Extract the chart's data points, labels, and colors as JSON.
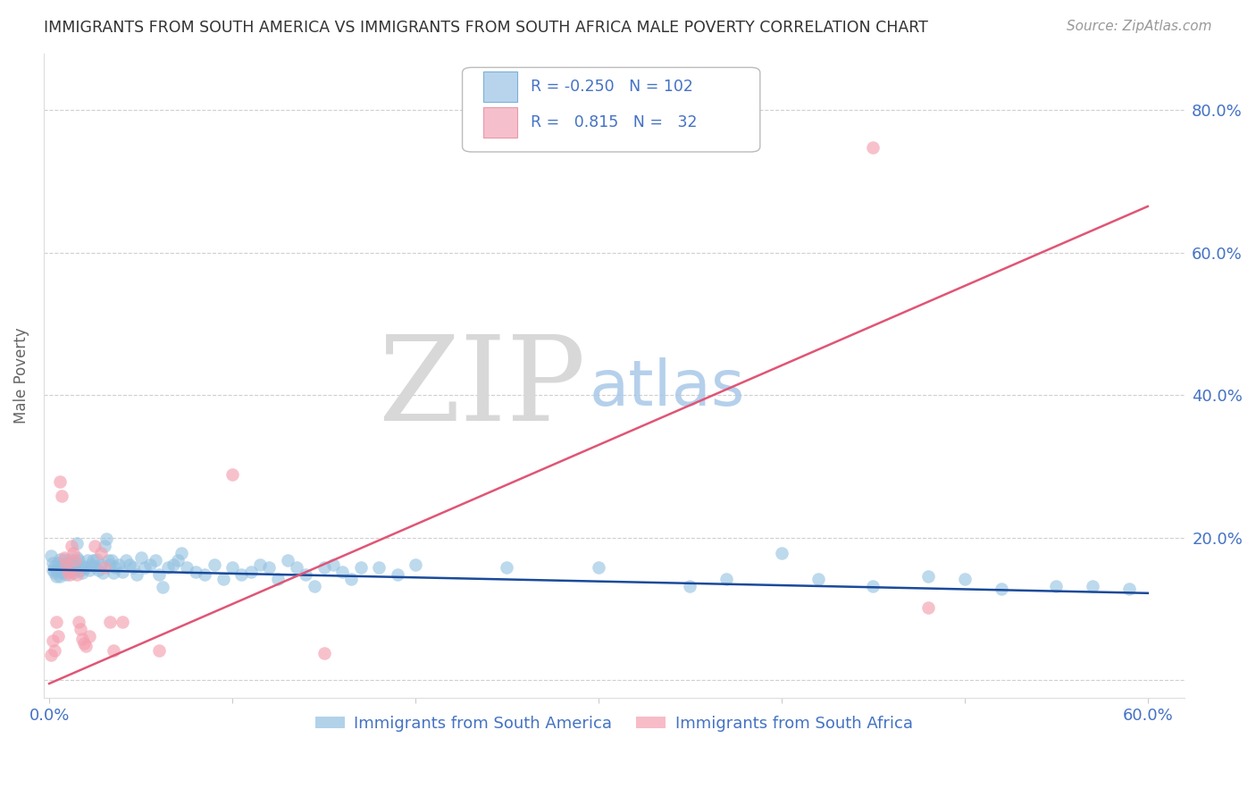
{
  "title": "IMMIGRANTS FROM SOUTH AMERICA VS IMMIGRANTS FROM SOUTH AFRICA MALE POVERTY CORRELATION CHART",
  "source": "Source: ZipAtlas.com",
  "ylabel": "Male Poverty",
  "series1_label": "Immigrants from South America",
  "series2_label": "Immigrants from South Africa",
  "series1_color": "#92c0e0",
  "series2_color": "#f4a0b0",
  "series1_R": -0.25,
  "series1_N": 102,
  "series2_R": 0.815,
  "series2_N": 32,
  "xlim": [
    -0.003,
    0.62
  ],
  "ylim": [
    -0.025,
    0.88
  ],
  "grid_color": "#d0d0d0",
  "background_color": "#ffffff",
  "title_color": "#333333",
  "axis_label_color": "#4472c4",
  "trend1_color": "#1a4a9a",
  "trend2_color": "#e05575",
  "trend1_x": [
    0.0,
    0.6
  ],
  "trend1_y": [
    0.155,
    0.122
  ],
  "trend2_x": [
    0.0,
    0.6
  ],
  "trend2_y": [
    -0.005,
    0.665
  ],
  "series1_points": [
    [
      0.001,
      0.175
    ],
    [
      0.002,
      0.165
    ],
    [
      0.002,
      0.155
    ],
    [
      0.003,
      0.16
    ],
    [
      0.003,
      0.15
    ],
    [
      0.004,
      0.155
    ],
    [
      0.004,
      0.145
    ],
    [
      0.005,
      0.165
    ],
    [
      0.005,
      0.155
    ],
    [
      0.006,
      0.17
    ],
    [
      0.006,
      0.145
    ],
    [
      0.007,
      0.16
    ],
    [
      0.007,
      0.15
    ],
    [
      0.008,
      0.17
    ],
    [
      0.008,
      0.155
    ],
    [
      0.009,
      0.16
    ],
    [
      0.009,
      0.148
    ],
    [
      0.01,
      0.155
    ],
    [
      0.01,
      0.165
    ],
    [
      0.011,
      0.17
    ],
    [
      0.011,
      0.158
    ],
    [
      0.012,
      0.155
    ],
    [
      0.012,
      0.165
    ],
    [
      0.013,
      0.15
    ],
    [
      0.013,
      0.16
    ],
    [
      0.014,
      0.165
    ],
    [
      0.014,
      0.155
    ],
    [
      0.015,
      0.192
    ],
    [
      0.015,
      0.172
    ],
    [
      0.016,
      0.168
    ],
    [
      0.017,
      0.155
    ],
    [
      0.018,
      0.15
    ],
    [
      0.019,
      0.16
    ],
    [
      0.02,
      0.158
    ],
    [
      0.021,
      0.168
    ],
    [
      0.022,
      0.155
    ],
    [
      0.023,
      0.162
    ],
    [
      0.024,
      0.168
    ],
    [
      0.025,
      0.16
    ],
    [
      0.026,
      0.17
    ],
    [
      0.027,
      0.155
    ],
    [
      0.028,
      0.162
    ],
    [
      0.029,
      0.15
    ],
    [
      0.03,
      0.188
    ],
    [
      0.031,
      0.198
    ],
    [
      0.032,
      0.168
    ],
    [
      0.033,
      0.162
    ],
    [
      0.034,
      0.168
    ],
    [
      0.035,
      0.15
    ],
    [
      0.036,
      0.158
    ],
    [
      0.038,
      0.162
    ],
    [
      0.04,
      0.152
    ],
    [
      0.042,
      0.168
    ],
    [
      0.044,
      0.162
    ],
    [
      0.046,
      0.158
    ],
    [
      0.048,
      0.148
    ],
    [
      0.05,
      0.172
    ],
    [
      0.052,
      0.158
    ],
    [
      0.055,
      0.162
    ],
    [
      0.058,
      0.168
    ],
    [
      0.06,
      0.148
    ],
    [
      0.062,
      0.13
    ],
    [
      0.065,
      0.158
    ],
    [
      0.068,
      0.162
    ],
    [
      0.07,
      0.168
    ],
    [
      0.072,
      0.178
    ],
    [
      0.075,
      0.158
    ],
    [
      0.08,
      0.152
    ],
    [
      0.085,
      0.148
    ],
    [
      0.09,
      0.162
    ],
    [
      0.095,
      0.142
    ],
    [
      0.1,
      0.158
    ],
    [
      0.105,
      0.148
    ],
    [
      0.11,
      0.152
    ],
    [
      0.115,
      0.162
    ],
    [
      0.12,
      0.158
    ],
    [
      0.125,
      0.142
    ],
    [
      0.13,
      0.168
    ],
    [
      0.135,
      0.158
    ],
    [
      0.14,
      0.148
    ],
    [
      0.145,
      0.132
    ],
    [
      0.15,
      0.158
    ],
    [
      0.155,
      0.162
    ],
    [
      0.16,
      0.152
    ],
    [
      0.165,
      0.142
    ],
    [
      0.17,
      0.158
    ],
    [
      0.18,
      0.158
    ],
    [
      0.19,
      0.148
    ],
    [
      0.2,
      0.162
    ],
    [
      0.25,
      0.158
    ],
    [
      0.3,
      0.158
    ],
    [
      0.35,
      0.132
    ],
    [
      0.37,
      0.142
    ],
    [
      0.4,
      0.178
    ],
    [
      0.42,
      0.142
    ],
    [
      0.45,
      0.132
    ],
    [
      0.48,
      0.145
    ],
    [
      0.5,
      0.142
    ],
    [
      0.52,
      0.128
    ],
    [
      0.55,
      0.132
    ],
    [
      0.57,
      0.132
    ],
    [
      0.59,
      0.128
    ]
  ],
  "series2_points": [
    [
      0.001,
      0.035
    ],
    [
      0.002,
      0.055
    ],
    [
      0.003,
      0.042
    ],
    [
      0.004,
      0.082
    ],
    [
      0.005,
      0.062
    ],
    [
      0.006,
      0.278
    ],
    [
      0.007,
      0.258
    ],
    [
      0.008,
      0.172
    ],
    [
      0.009,
      0.162
    ],
    [
      0.01,
      0.152
    ],
    [
      0.011,
      0.148
    ],
    [
      0.012,
      0.188
    ],
    [
      0.013,
      0.178
    ],
    [
      0.014,
      0.168
    ],
    [
      0.015,
      0.148
    ],
    [
      0.016,
      0.082
    ],
    [
      0.017,
      0.072
    ],
    [
      0.018,
      0.058
    ],
    [
      0.019,
      0.052
    ],
    [
      0.02,
      0.048
    ],
    [
      0.022,
      0.062
    ],
    [
      0.025,
      0.188
    ],
    [
      0.028,
      0.178
    ],
    [
      0.03,
      0.158
    ],
    [
      0.033,
      0.082
    ],
    [
      0.035,
      0.042
    ],
    [
      0.04,
      0.082
    ],
    [
      0.06,
      0.042
    ],
    [
      0.1,
      0.288
    ],
    [
      0.15,
      0.038
    ],
    [
      0.45,
      0.748
    ],
    [
      0.48,
      0.102
    ]
  ]
}
